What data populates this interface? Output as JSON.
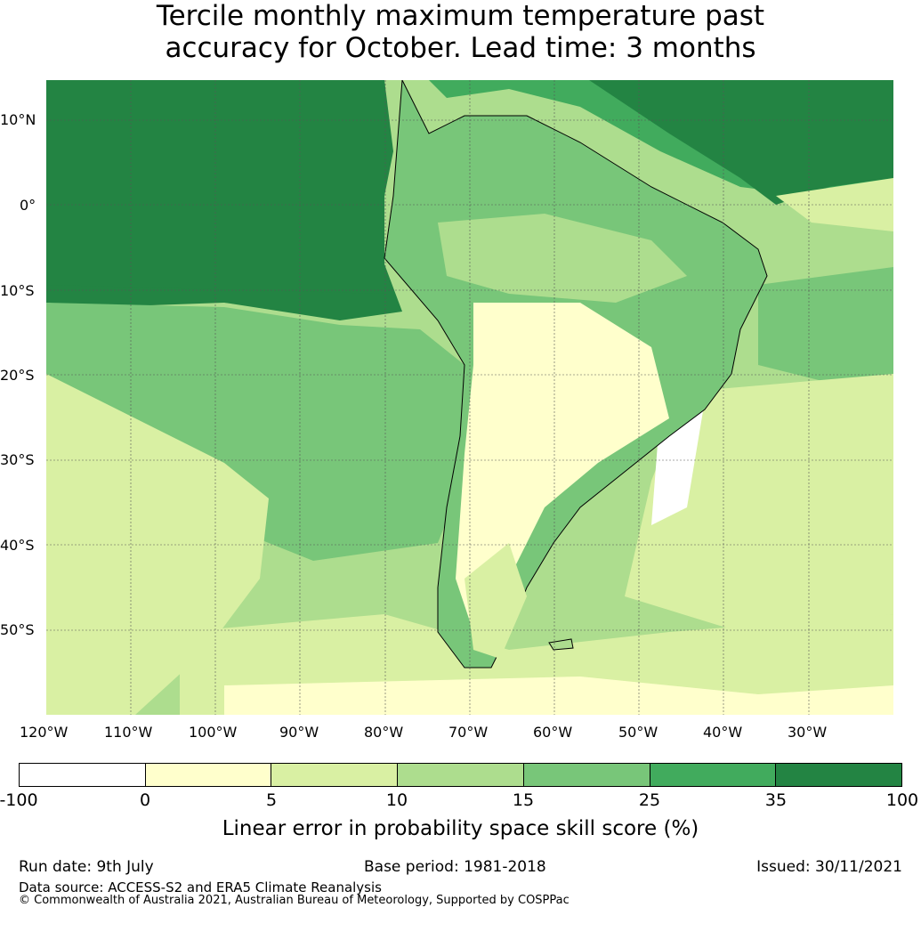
{
  "title": {
    "line1": "Tercile monthly maximum temperature past",
    "line2": "accuracy for October. Lead time: 3 months"
  },
  "map": {
    "lat_labels": [
      "10°N",
      "0°",
      "10°S",
      "20°S",
      "30°S",
      "40°S",
      "50°S"
    ],
    "lon_labels": [
      "120°W",
      "110°W",
      "100°W",
      "90°W",
      "80°W",
      "70°W",
      "60°W",
      "50°W",
      "40°W",
      "30°W"
    ],
    "land_outline_color": "#000000",
    "gridline_color": "#555555"
  },
  "colorbar": {
    "ticks": [
      "-100",
      "0",
      "5",
      "10",
      "15",
      "25",
      "35",
      "100"
    ],
    "colors": [
      "#ffffff",
      "#ffffcc",
      "#d9f0a3",
      "#addd8e",
      "#78c679",
      "#41ab5d",
      "#238443"
    ],
    "label": "Linear error in probability space skill score (%)"
  },
  "footer": {
    "run_date": "Run date: 9th July",
    "base_period": "Base period: 1981-2018",
    "issued": "Issued: 30/11/2021",
    "data_source": "Data source: ACCESS-S2 and ERA5 Climate Reanalysis",
    "copyright": "© Commonwealth of Australia 2021, Australian Bureau of Meteorology, Supported by COSPPac"
  }
}
